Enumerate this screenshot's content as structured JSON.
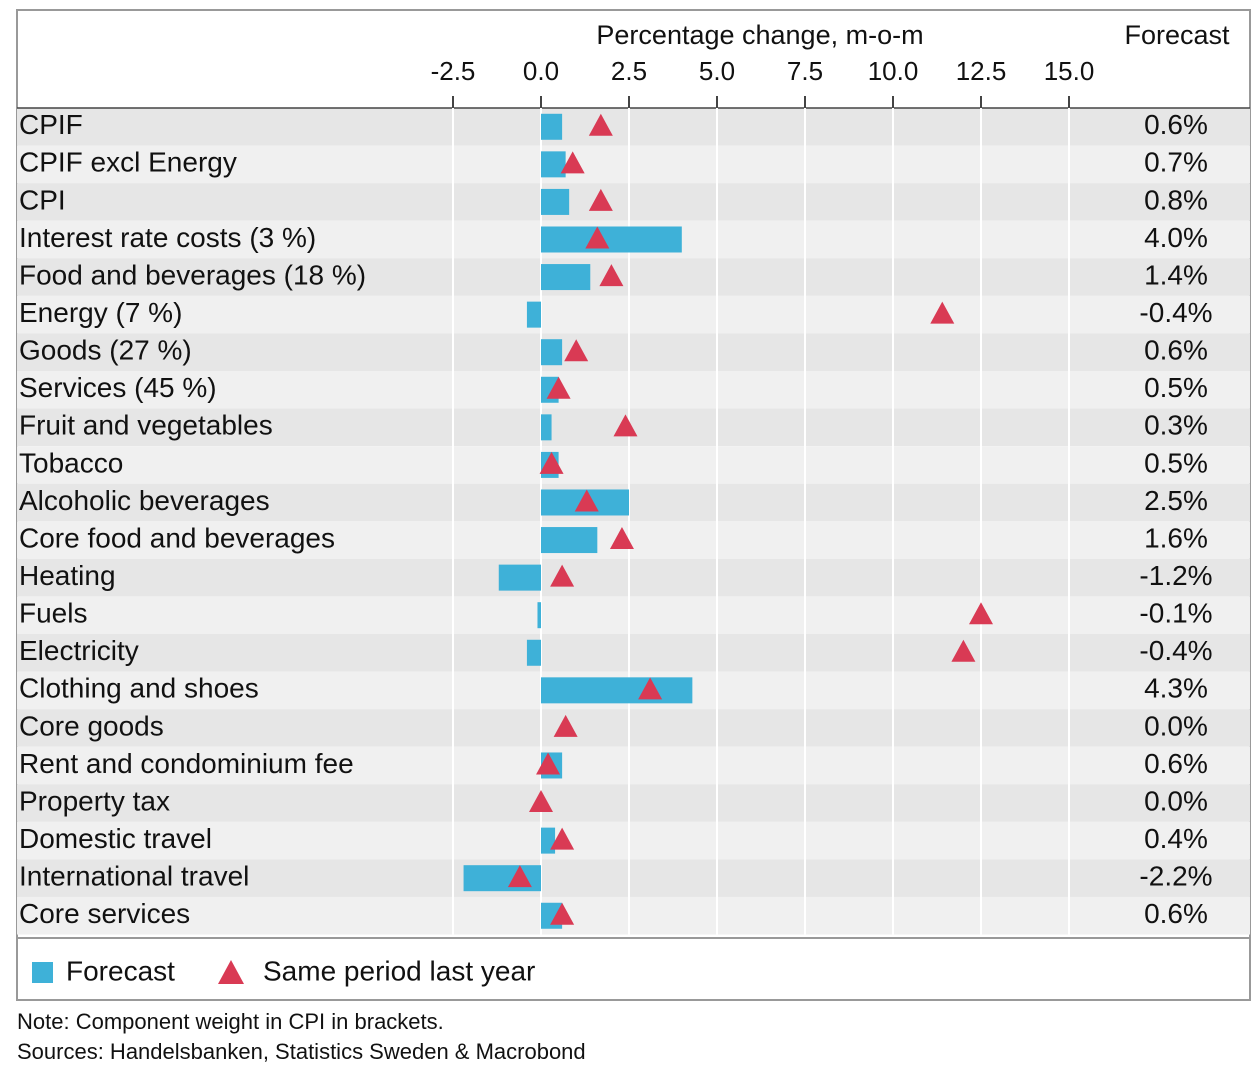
{
  "chart_data": {
    "type": "bar",
    "subtitle": "Percentage change, m-o-m",
    "value_column_title": "Forecast",
    "categories": [
      "CPIF",
      "CPIF excl Energy",
      "CPI",
      "Interest rate costs (3 %)",
      "Food and beverages (18 %)",
      "Energy (7 %)",
      "Goods (27 %)",
      "Services (45 %)",
      "Fruit and vegetables",
      "Tobacco",
      "Alcoholic beverages",
      "Core food and beverages",
      "Heating",
      "Fuels",
      "Electricity",
      "Clothing and shoes",
      "Core goods",
      "Rent and condominium fee",
      "Property tax",
      "Domestic travel",
      "International travel",
      "Core services"
    ],
    "series": [
      {
        "name": "Forecast",
        "color": "#3eb1d8",
        "values": [
          0.6,
          0.7,
          0.8,
          4.0,
          1.4,
          -0.4,
          0.6,
          0.5,
          0.3,
          0.5,
          2.5,
          1.6,
          -1.2,
          -0.1,
          -0.4,
          4.3,
          0.0,
          0.6,
          0.0,
          0.4,
          -2.2,
          0.6
        ],
        "value_labels": [
          "0.6%",
          "0.7%",
          "0.8%",
          "4.0%",
          "1.4%",
          "-0.4%",
          "0.6%",
          "0.5%",
          "0.3%",
          "0.5%",
          "2.5%",
          "1.6%",
          "-1.2%",
          "-0.1%",
          "-0.4%",
          "4.3%",
          "0.0%",
          "0.6%",
          "0.0%",
          "0.4%",
          "-2.2%",
          "0.6%"
        ]
      },
      {
        "name": "Same period last year",
        "color": "#d93a54",
        "values": [
          1.7,
          0.9,
          1.7,
          1.6,
          2.0,
          11.4,
          1.0,
          0.5,
          2.4,
          0.3,
          1.3,
          2.3,
          0.6,
          12.5,
          12.0,
          3.1,
          0.7,
          0.2,
          0.0,
          0.6,
          -0.6,
          0.6
        ]
      }
    ],
    "xlim": [
      -2.5,
      15.0
    ],
    "xticks": [
      {
        "value": -2.5,
        "label": "-2.5"
      },
      {
        "value": 0,
        "label": "0.0"
      },
      2.5,
      {
        "value": 5,
        "label": "5.0"
      },
      7.5,
      {
        "value": 10,
        "label": "10.0"
      },
      12.5,
      {
        "value": 15,
        "label": "15.0"
      }
    ],
    "grid": true,
    "notes": [
      "Note: Component weight in CPI in brackets.",
      "Sources: Handelsbanken, Statistics Sweden & Macrobond"
    ]
  }
}
